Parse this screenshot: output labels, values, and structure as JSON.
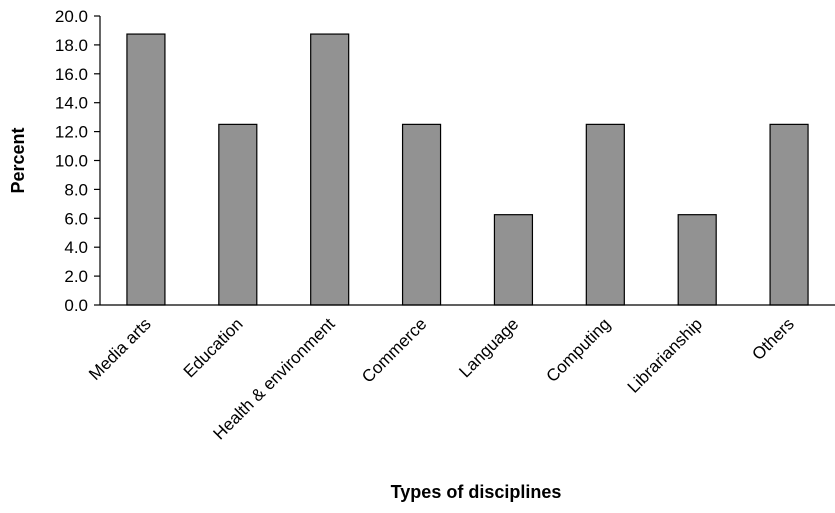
{
  "chart_data": {
    "type": "bar",
    "title": "",
    "xlabel": "Types of disciplines",
    "ylabel": "Percent",
    "categories": [
      "Media arts",
      "Education",
      "Health & environment",
      "Commerce",
      "Language",
      "Computing",
      "Librarianship",
      "Others"
    ],
    "values": [
      18.75,
      12.5,
      18.75,
      12.5,
      6.25,
      12.5,
      6.25,
      12.5
    ],
    "ylim": [
      0,
      20
    ],
    "yticks": [
      "0.0",
      "2.0",
      "4.0",
      "6.0",
      "8.0",
      "10.0",
      "12.0",
      "14.0",
      "16.0",
      "18.0",
      "20.0"
    ],
    "grid": false,
    "legend": "none",
    "colors": {
      "bar_fill": "#929292",
      "bar_stroke": "#000000"
    }
  }
}
